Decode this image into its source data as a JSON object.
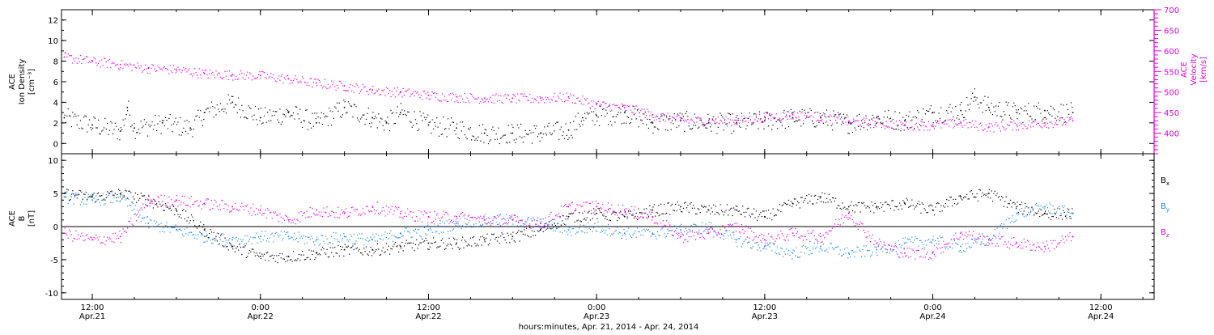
{
  "figure": {
    "x_axis_title": "hours:minutes, Apr. 21, 2014 - Apr. 24, 2014",
    "x_ticks": [
      {
        "time": "12:00",
        "date": "Apr.21",
        "t_hours": 12
      },
      {
        "time": "0:00",
        "date": "Apr.22",
        "t_hours": 24
      },
      {
        "time": "12:00",
        "date": "Apr.22",
        "t_hours": 36
      },
      {
        "time": "0:00",
        "date": "Apr.23",
        "t_hours": 48
      },
      {
        "time": "12:00",
        "date": "Apr.23",
        "t_hours": 60
      },
      {
        "time": "0:00",
        "date": "Apr.24",
        "t_hours": 72
      },
      {
        "time": "12:00",
        "date": "Apr.24",
        "t_hours": 84
      }
    ]
  },
  "colors": {
    "density": "#000000",
    "velocity": "#e000e0",
    "bx": "#000000",
    "by": "#1e88e5",
    "bz": "#e000e0"
  },
  "chart_data": [
    {
      "type": "scatter",
      "panel": "top",
      "x_range_hours": [
        9.8,
        87.8
      ],
      "left_axis": {
        "label_lines": [
          "ACE",
          "Ion Density",
          "[cm⁻³]"
        ],
        "ylim": [
          -1,
          13
        ],
        "ticks": [
          0,
          2,
          4,
          6,
          8,
          10,
          12
        ]
      },
      "right_axis": {
        "label_lines": [
          "ACE",
          "Velocity",
          "[km/s]"
        ],
        "ylim": [
          350,
          700
        ],
        "ticks": [
          400,
          450,
          500,
          550,
          600,
          650,
          700
        ]
      },
      "series": [
        {
          "key": "density",
          "axis": "left",
          "x_hours": [
            10,
            12,
            14,
            14.5,
            15,
            17,
            19,
            20,
            22,
            24,
            26,
            28,
            30,
            32,
            33,
            34,
            36,
            38,
            40,
            42,
            44,
            46,
            47,
            48,
            50,
            52,
            54,
            56,
            58,
            60,
            62,
            64,
            66,
            68,
            70,
            72,
            74,
            75,
            76,
            78,
            80,
            82
          ],
          "values": [
            2.5,
            1.8,
            1.2,
            3.5,
            1.5,
            2.0,
            1.5,
            3.0,
            4.0,
            2.5,
            3.0,
            2.0,
            3.5,
            2.5,
            2.0,
            3.0,
            1.8,
            1.5,
            1.0,
            1.0,
            1.0,
            1.3,
            2.5,
            2.7,
            3.0,
            2.0,
            2.2,
            2.0,
            2.0,
            2.2,
            2.5,
            2.5,
            2.0,
            2.5,
            2.2,
            3.0,
            3.2,
            4.5,
            3.5,
            3.0,
            3.2,
            3.0
          ]
        },
        {
          "key": "velocity",
          "axis": "right",
          "x_hours": [
            10,
            12,
            14,
            16,
            18,
            20,
            22,
            24,
            26,
            28,
            30,
            32,
            34,
            36,
            38,
            40,
            42,
            44,
            46,
            48,
            50,
            52,
            54,
            56,
            58,
            60,
            62,
            64,
            66,
            68,
            70,
            72,
            74,
            76,
            78,
            80,
            82
          ],
          "values": [
            585,
            575,
            567,
            558,
            555,
            545,
            542,
            540,
            532,
            522,
            515,
            505,
            500,
            492,
            488,
            485,
            485,
            485,
            488,
            470,
            462,
            445,
            432,
            430,
            430,
            440,
            445,
            440,
            428,
            425,
            420,
            420,
            425,
            415,
            420,
            425,
            430
          ]
        }
      ]
    },
    {
      "type": "scatter",
      "panel": "bottom",
      "x_range_hours": [
        9.8,
        87.8
      ],
      "left_axis": {
        "label_lines": [
          "ACE",
          "B",
          "[nT]"
        ],
        "ylim": [
          -11,
          11
        ],
        "ticks": [
          -10,
          -5,
          0,
          5,
          10
        ]
      },
      "zero_line": true,
      "series": [
        {
          "key": "bx",
          "name": "B",
          "subscript": "x",
          "x_hours": [
            10,
            12,
            14,
            16,
            18,
            20,
            22,
            24,
            26,
            28,
            30,
            32,
            34,
            36,
            38,
            40,
            42,
            44,
            46,
            48,
            50,
            52,
            54,
            56,
            58,
            60,
            62,
            64,
            66,
            68,
            70,
            72,
            74,
            76,
            78,
            80,
            82
          ],
          "values": [
            5.0,
            4.5,
            5.0,
            4.0,
            2.5,
            -0.5,
            -3.0,
            -4.5,
            -4.5,
            -4.0,
            -3.5,
            -3.5,
            -3.0,
            -2.5,
            -2.5,
            -2.0,
            -1.5,
            -0.5,
            1.5,
            2.0,
            1.5,
            2.5,
            3.0,
            2.5,
            2.5,
            1.5,
            3.5,
            4.5,
            3.0,
            3.0,
            3.5,
            2.5,
            4.5,
            5.0,
            3.0,
            2.0,
            2.0
          ]
        },
        {
          "key": "by",
          "name": "B",
          "subscript": "y",
          "x_hours": [
            10,
            12,
            14,
            16,
            18,
            20,
            22,
            24,
            26,
            28,
            30,
            32,
            34,
            36,
            38,
            40,
            42,
            44,
            46,
            48,
            50,
            52,
            54,
            56,
            58,
            60,
            62,
            64,
            66,
            68,
            70,
            72,
            74,
            76,
            78,
            80,
            82
          ],
          "values": [
            4.5,
            4.0,
            4.5,
            0.5,
            -0.5,
            -1.5,
            -2.0,
            -1.5,
            -1.5,
            -2.0,
            -1.5,
            -2.0,
            -1.0,
            -0.5,
            0.5,
            1.0,
            1.0,
            0.5,
            -0.5,
            0.0,
            -1.0,
            -1.0,
            -0.5,
            0.0,
            -2.0,
            -3.0,
            -4.0,
            -3.0,
            -4.0,
            -3.5,
            -2.5,
            -2.0,
            -3.0,
            -2.0,
            2.0,
            3.0,
            2.0
          ]
        },
        {
          "key": "bz",
          "name": "B",
          "subscript": "z",
          "x_hours": [
            10,
            12,
            14,
            16,
            18,
            20,
            22,
            24,
            26,
            28,
            30,
            32,
            34,
            36,
            38,
            40,
            42,
            44,
            46,
            48,
            50,
            52,
            54,
            56,
            58,
            60,
            62,
            64,
            66,
            68,
            70,
            72,
            74,
            76,
            78,
            80,
            82
          ],
          "values": [
            -1.0,
            -2.0,
            -1.5,
            4.0,
            4.0,
            3.5,
            3.0,
            2.5,
            1.0,
            2.5,
            2.0,
            3.0,
            2.0,
            1.5,
            1.5,
            1.0,
            1.0,
            0.5,
            3.0,
            3.0,
            2.5,
            1.5,
            -1.5,
            -1.0,
            0.0,
            -2.0,
            -1.0,
            -1.5,
            2.0,
            -2.5,
            -4.0,
            -4.0,
            -1.0,
            -2.0,
            -2.5,
            -3.0,
            -1.5
          ]
        }
      ]
    }
  ]
}
